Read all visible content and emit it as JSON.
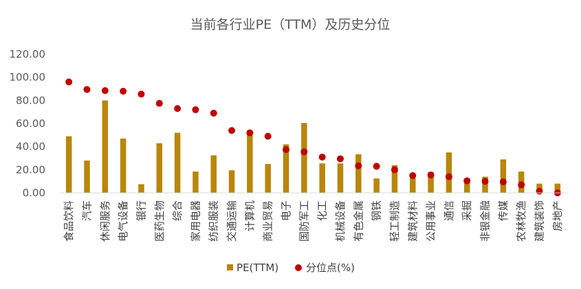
{
  "chart_data": {
    "type": "bar",
    "title": "当前各行业PE（TTM）及历史分位",
    "categories": [
      "食品饮料",
      "汽车",
      "休闲服务",
      "电气设备",
      "银行",
      "医药生物",
      "综合",
      "家用电器",
      "纺织服装",
      "交通运输",
      "计算机",
      "商业贸易",
      "电子",
      "国防军工",
      "化工",
      "机械设备",
      "有色金属",
      "钢铁",
      "轻工制造",
      "建筑材料",
      "公用事业",
      "通信",
      "采掘",
      "非银金融",
      "传媒",
      "农林牧渔",
      "建筑装饰",
      "房地产"
    ],
    "series": [
      {
        "name": "PE(TTM)",
        "type": "bar",
        "color": "#B8860B",
        "values": [
          49,
          28,
          80,
          47,
          7.5,
          43,
          52,
          18.5,
          32.5,
          19.5,
          53,
          25,
          42,
          60.5,
          25.5,
          25.5,
          33.5,
          12.5,
          24,
          14.5,
          18,
          35,
          10,
          14,
          29,
          18.5,
          8,
          8
        ]
      },
      {
        "name": "分位点(%)",
        "type": "scatter",
        "color": "#C00000",
        "values": [
          96,
          89.5,
          88.5,
          88,
          85.5,
          77.5,
          73,
          72,
          69,
          54,
          52,
          49,
          37.5,
          35.5,
          31,
          29.5,
          23.5,
          23,
          20,
          15,
          15.5,
          14,
          10.5,
          10,
          9.5,
          7,
          1.5,
          0
        ]
      }
    ],
    "yticks": [
      "0.00",
      "20.00",
      "40.00",
      "60.00",
      "80.00",
      "100.00",
      "120.00"
    ],
    "ylim": [
      0,
      120
    ],
    "grid": false,
    "legend": "bottom"
  }
}
